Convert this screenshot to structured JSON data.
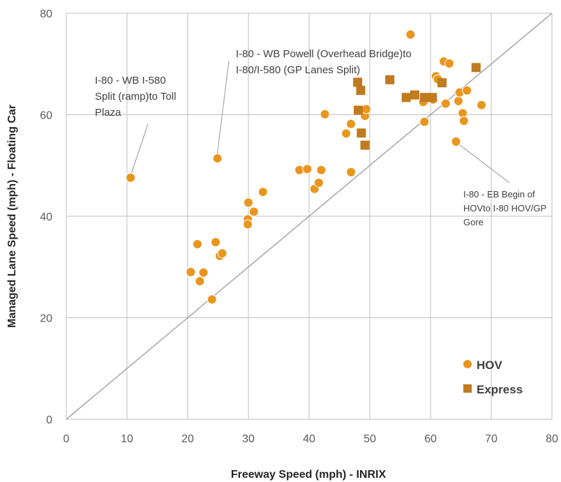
{
  "chart_data": {
    "type": "scatter",
    "xlabel": "Freeway Speed (mph) - INRIX",
    "ylabel": "Managed Lane Speed (mph) - Floating Car",
    "xlim": [
      0,
      80
    ],
    "ylim": [
      0,
      80
    ],
    "x_ticks": [
      "0",
      "10",
      "20",
      "30",
      "40",
      "50",
      "60",
      "70",
      "80"
    ],
    "y_ticks": [
      "0",
      "20",
      "40",
      "60",
      "80"
    ],
    "grid": true,
    "legend_position": "bottom-right",
    "reference_line": {
      "from": [
        0,
        0
      ],
      "to": [
        80,
        80
      ]
    },
    "series": [
      {
        "name": "HOV",
        "marker": "circle",
        "color": "#E8961E",
        "points": [
          [
            10.6,
            47.6
          ],
          [
            24.9,
            51.4
          ],
          [
            20.5,
            29.0
          ],
          [
            21.6,
            34.5
          ],
          [
            22.0,
            27.2
          ],
          [
            22.6,
            28.9
          ],
          [
            24.0,
            23.6
          ],
          [
            24.6,
            34.9
          ],
          [
            25.3,
            32.2
          ],
          [
            25.7,
            32.7
          ],
          [
            29.9,
            39.4
          ],
          [
            30.0,
            42.7
          ],
          [
            29.9,
            38.4
          ],
          [
            30.9,
            40.9
          ],
          [
            32.4,
            44.8
          ],
          [
            38.4,
            49.1
          ],
          [
            39.7,
            49.3
          ],
          [
            40.9,
            45.4
          ],
          [
            41.6,
            46.6
          ],
          [
            42.0,
            49.1
          ],
          [
            42.6,
            60.1
          ],
          [
            46.1,
            56.3
          ],
          [
            46.9,
            58.2
          ],
          [
            46.9,
            48.7
          ],
          [
            49.2,
            59.8
          ],
          [
            49.4,
            61.1
          ],
          [
            56.7,
            75.8
          ],
          [
            58.8,
            62.5
          ],
          [
            59.0,
            58.6
          ],
          [
            60.4,
            63.0
          ],
          [
            60.9,
            67.6
          ],
          [
            61.2,
            67.0
          ],
          [
            62.2,
            70.5
          ],
          [
            62.5,
            62.2
          ],
          [
            63.1,
            70.1
          ],
          [
            64.2,
            54.7
          ],
          [
            64.6,
            62.7
          ],
          [
            64.8,
            64.4
          ],
          [
            65.3,
            60.3
          ],
          [
            65.5,
            58.8
          ],
          [
            66.0,
            64.8
          ],
          [
            68.4,
            61.9
          ]
        ]
      },
      {
        "name": "Express",
        "marker": "square",
        "color": "#C07A1F",
        "points": [
          [
            48.0,
            66.4
          ],
          [
            48.5,
            64.8
          ],
          [
            48.1,
            60.9
          ],
          [
            48.6,
            56.4
          ],
          [
            49.2,
            54.0
          ],
          [
            53.3,
            66.9
          ],
          [
            56.0,
            63.4
          ],
          [
            57.4,
            63.9
          ],
          [
            59.0,
            63.4
          ],
          [
            60.3,
            63.4
          ],
          [
            61.9,
            66.3
          ],
          [
            67.5,
            69.3
          ]
        ]
      }
    ],
    "annotations": [
      {
        "lines": [
          "I-80 - WB I-580",
          "Split (ramp)to Toll",
          "Plaza"
        ]
      },
      {
        "lines": [
          "I-80 - WB Powell (Overhead Bridge)to",
          "I-80/I-580 (GP Lanes Split)"
        ]
      },
      {
        "lines": [
          "I-80 - EB Begin of",
          "HOVto I-80 HOV/GP",
          "Gore"
        ]
      }
    ]
  }
}
